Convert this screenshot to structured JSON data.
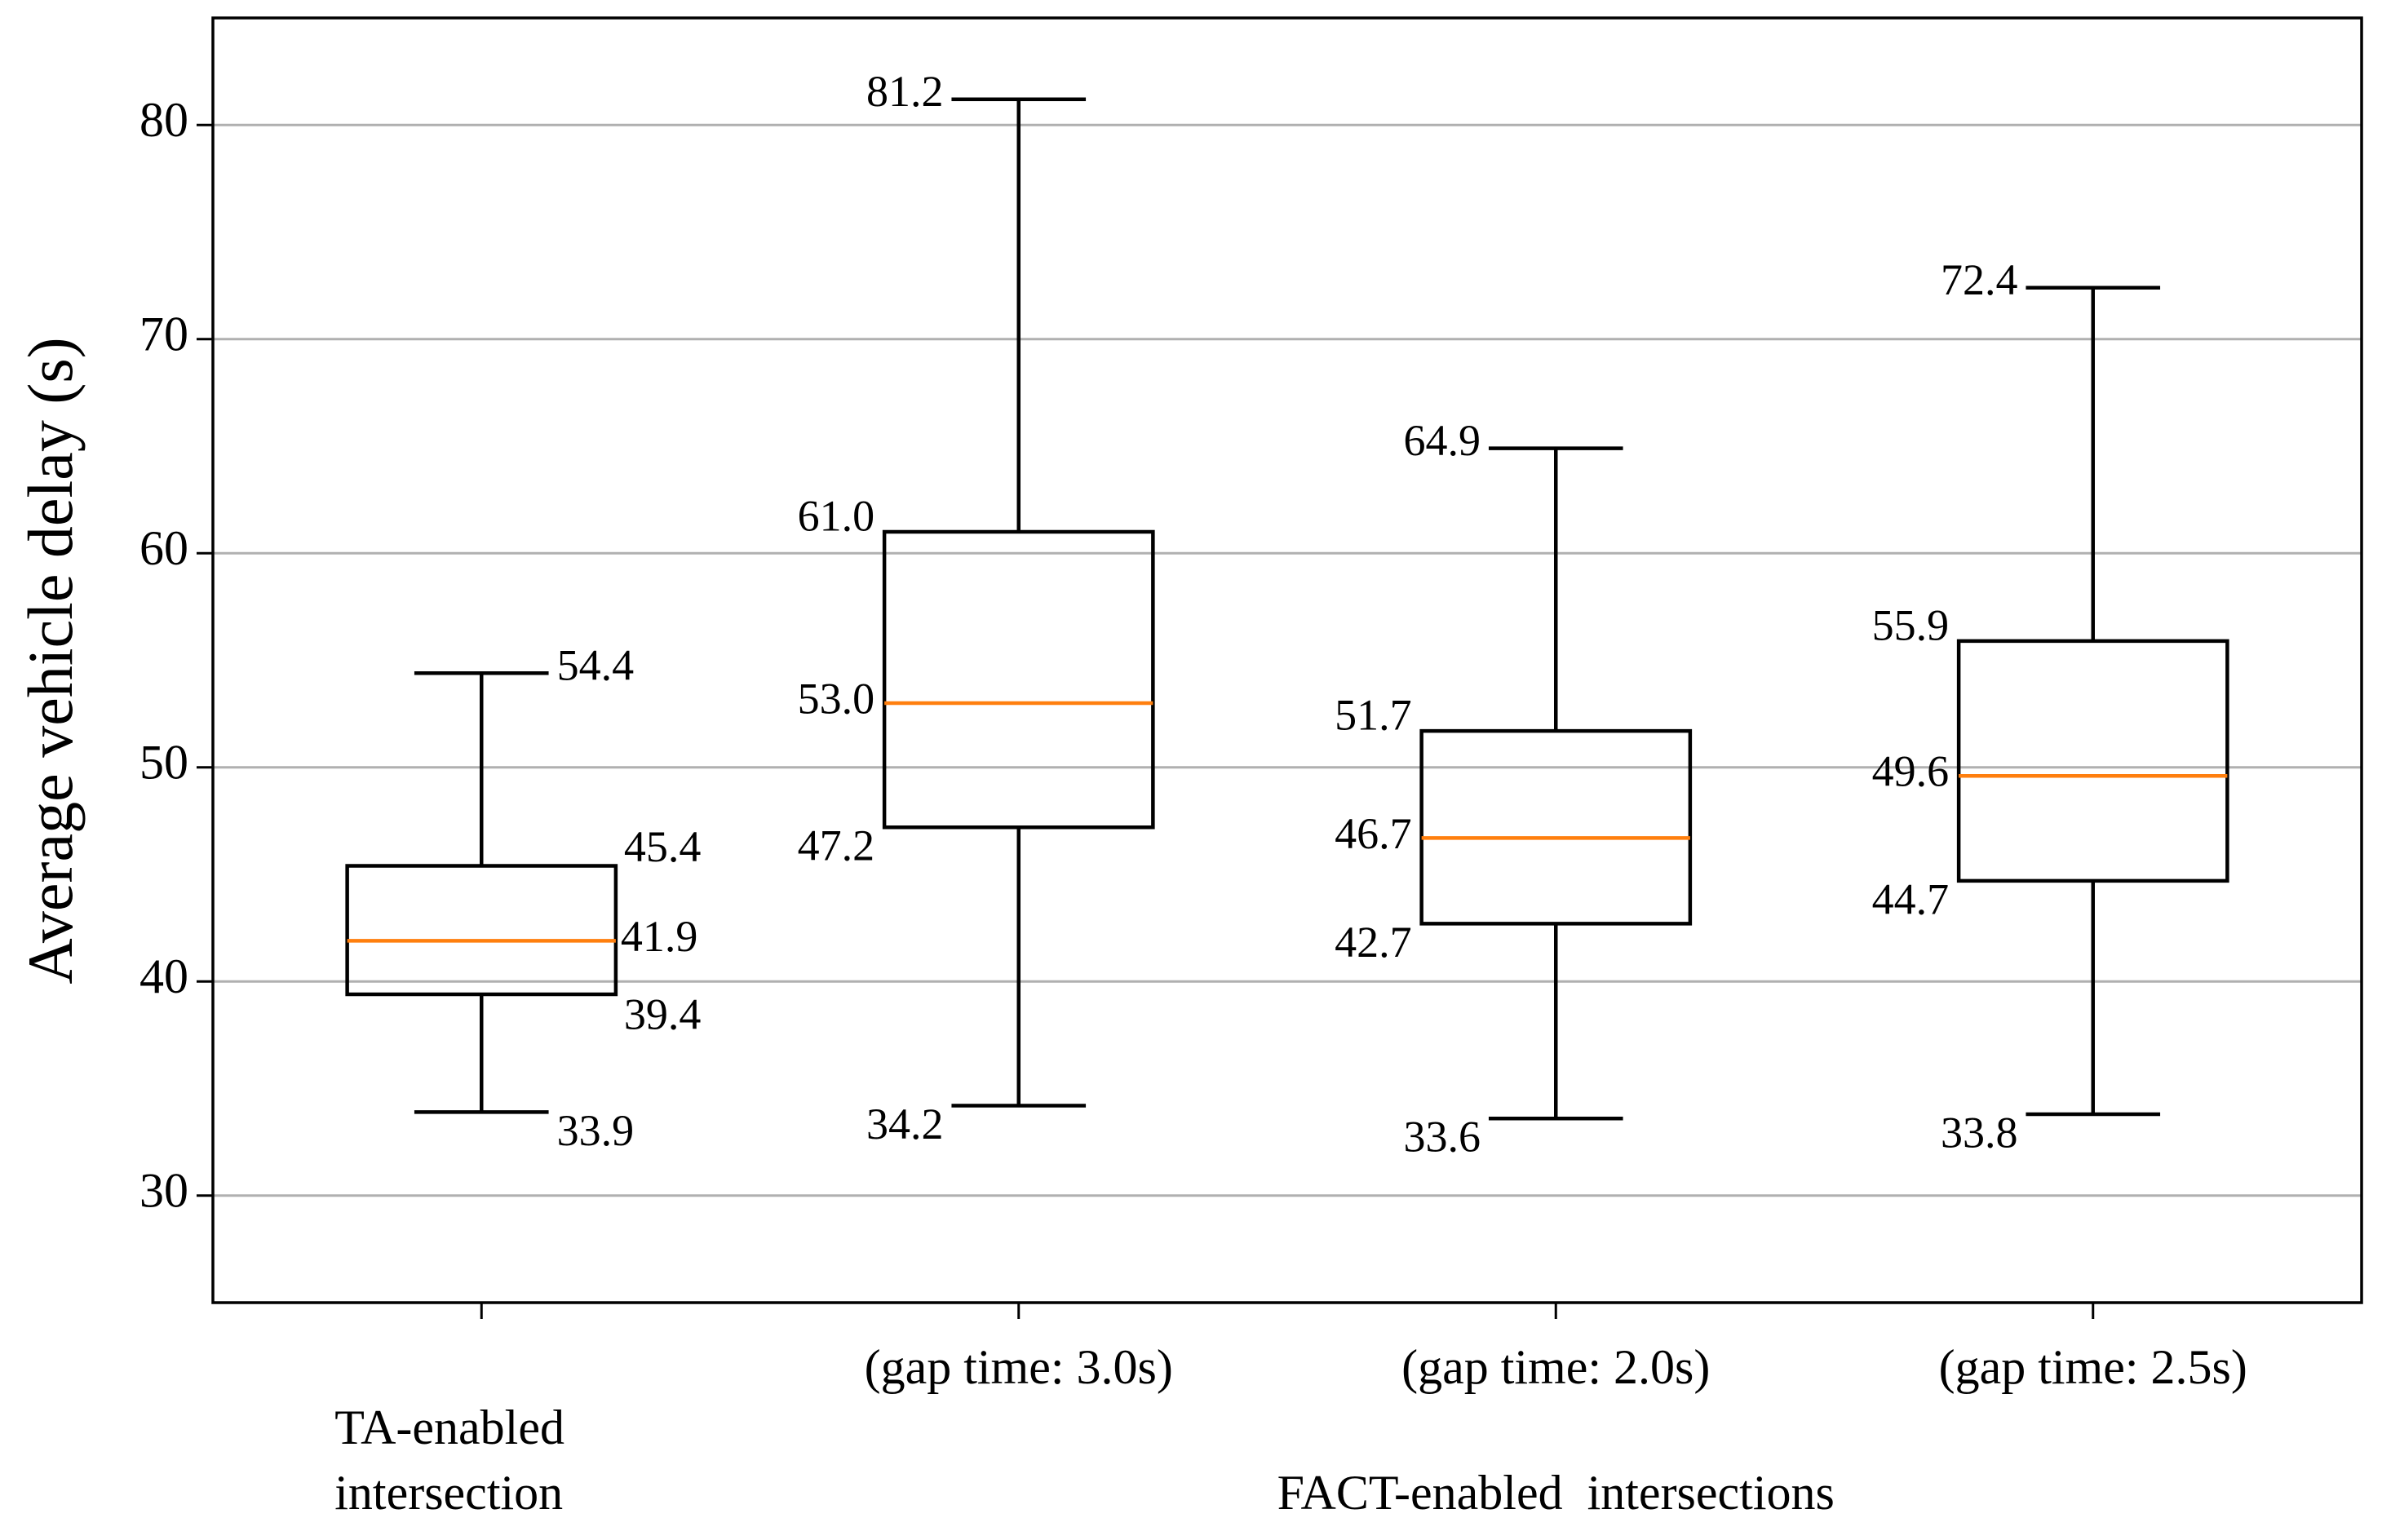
{
  "chart_data": {
    "type": "box",
    "ylabel": "Average  vehicle  delay  (s)",
    "categories": [
      "TA-enabled intersection",
      "(gap time: 3.0s)",
      "(gap time: 2.0s)",
      "(gap time: 2.5s)"
    ],
    "group_label": "FACT-enabled  intersections",
    "series": [
      {
        "values": [
          33.9,
          39.4,
          41.9,
          45.4,
          54.4
        ],
        "value_labels": [
          "33.9",
          "39.4",
          "41.9",
          "45.4",
          "54.4"
        ]
      },
      {
        "values": [
          34.2,
          47.2,
          53.0,
          61.0,
          81.2
        ],
        "value_labels": [
          "34.2",
          "47.2",
          "53.0",
          "61.0",
          "81.2"
        ]
      },
      {
        "values": [
          33.6,
          42.7,
          46.7,
          51.7,
          64.9
        ],
        "value_labels": [
          "33.6",
          "42.7",
          "46.7",
          "51.7",
          "64.9"
        ]
      },
      {
        "values": [
          33.8,
          44.7,
          49.6,
          55.9,
          72.4
        ],
        "value_labels": [
          "33.8",
          "44.7",
          "49.6",
          "55.9",
          "72.4"
        ]
      }
    ],
    "box_color": "#000000",
    "median_color": "#ff7f0e",
    "ylim": [
      25,
      85
    ],
    "yticks": [
      30,
      40,
      50,
      60,
      70,
      80
    ],
    "grid": true
  }
}
